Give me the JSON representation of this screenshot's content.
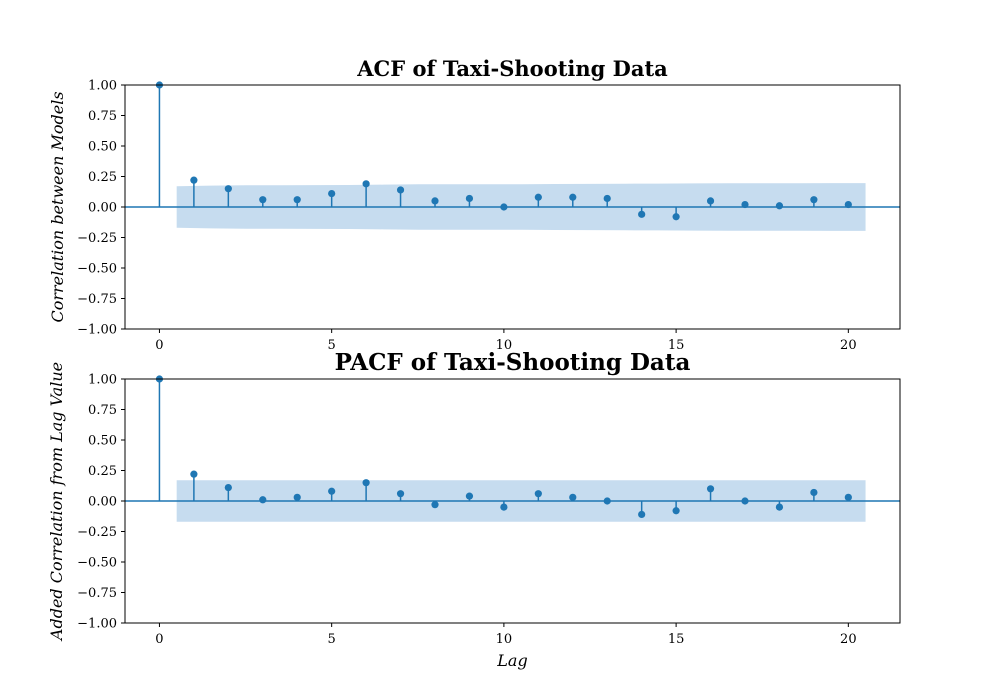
{
  "colors": {
    "series": "#1f77b4",
    "band": "#c6dcef"
  },
  "chart_data": [
    {
      "type": "stem",
      "title": "ACF of Taxi-Shooting Data",
      "xlabel": "",
      "ylabel": "Correlation between Models",
      "xlim": [
        -1,
        21.5
      ],
      "ylim": [
        -1.0,
        1.0
      ],
      "xticks": [
        0,
        5,
        10,
        15,
        20
      ],
      "yticks": [
        -1.0,
        -0.75,
        -0.5,
        -0.25,
        0.0,
        0.25,
        0.5,
        0.75,
        1.0
      ],
      "xtick_labels": [
        "0",
        "5",
        "10",
        "15",
        "20"
      ],
      "ytick_labels": [
        "−1.00",
        "−0.75",
        "−0.50",
        "−0.25",
        "0.00",
        "0.25",
        "0.50",
        "0.75",
        "1.00"
      ],
      "x": [
        0,
        1,
        2,
        3,
        4,
        5,
        6,
        7,
        8,
        9,
        10,
        11,
        12,
        13,
        14,
        15,
        16,
        17,
        18,
        19,
        20
      ],
      "values": [
        1.0,
        0.22,
        0.15,
        0.06,
        0.06,
        0.11,
        0.19,
        0.14,
        0.05,
        0.07,
        0.0,
        0.08,
        0.08,
        0.07,
        -0.06,
        -0.08,
        0.05,
        0.02,
        0.01,
        0.06,
        0.02
      ],
      "confidence_band": {
        "x": [
          0.5,
          1.5,
          2.5,
          3.5,
          4.5,
          5.5,
          6.5,
          7.5,
          8.5,
          9.5,
          10.5,
          11.5,
          12.5,
          13.5,
          14.5,
          15.5,
          16.5,
          17.5,
          18.5,
          19.5,
          20.5
        ],
        "upper": [
          0.17,
          0.175,
          0.178,
          0.178,
          0.179,
          0.18,
          0.183,
          0.186,
          0.186,
          0.187,
          0.187,
          0.188,
          0.19,
          0.191,
          0.192,
          0.194,
          0.195,
          0.195,
          0.195,
          0.196,
          0.196
        ],
        "lower": [
          -0.17,
          -0.175,
          -0.178,
          -0.178,
          -0.179,
          -0.18,
          -0.183,
          -0.186,
          -0.186,
          -0.187,
          -0.187,
          -0.188,
          -0.19,
          -0.191,
          -0.192,
          -0.194,
          -0.195,
          -0.195,
          -0.195,
          -0.196,
          -0.196
        ]
      }
    },
    {
      "type": "stem",
      "title": "PACF of Taxi-Shooting Data",
      "xlabel": "Lag",
      "ylabel": "Added Correlation from Lag Value",
      "xlim": [
        -1,
        21.5
      ],
      "ylim": [
        -1.0,
        1.0
      ],
      "xticks": [
        0,
        5,
        10,
        15,
        20
      ],
      "yticks": [
        -1.0,
        -0.75,
        -0.5,
        -0.25,
        0.0,
        0.25,
        0.5,
        0.75,
        1.0
      ],
      "xtick_labels": [
        "0",
        "5",
        "10",
        "15",
        "20"
      ],
      "ytick_labels": [
        "−1.00",
        "−0.75",
        "−0.50",
        "−0.25",
        "0.00",
        "0.25",
        "0.50",
        "0.75",
        "1.00"
      ],
      "x": [
        0,
        1,
        2,
        3,
        4,
        5,
        6,
        7,
        8,
        9,
        10,
        11,
        12,
        13,
        14,
        15,
        16,
        17,
        18,
        19,
        20
      ],
      "values": [
        1.0,
        0.22,
        0.11,
        0.01,
        0.03,
        0.08,
        0.15,
        0.06,
        -0.03,
        0.04,
        -0.05,
        0.06,
        0.03,
        0.0,
        -0.11,
        -0.08,
        0.1,
        0.0,
        -0.05,
        0.07,
        0.03
      ],
      "confidence_band": {
        "x": [
          0.5,
          20.5
        ],
        "upper": [
          0.17,
          0.17
        ],
        "lower": [
          -0.17,
          -0.17
        ]
      }
    }
  ]
}
